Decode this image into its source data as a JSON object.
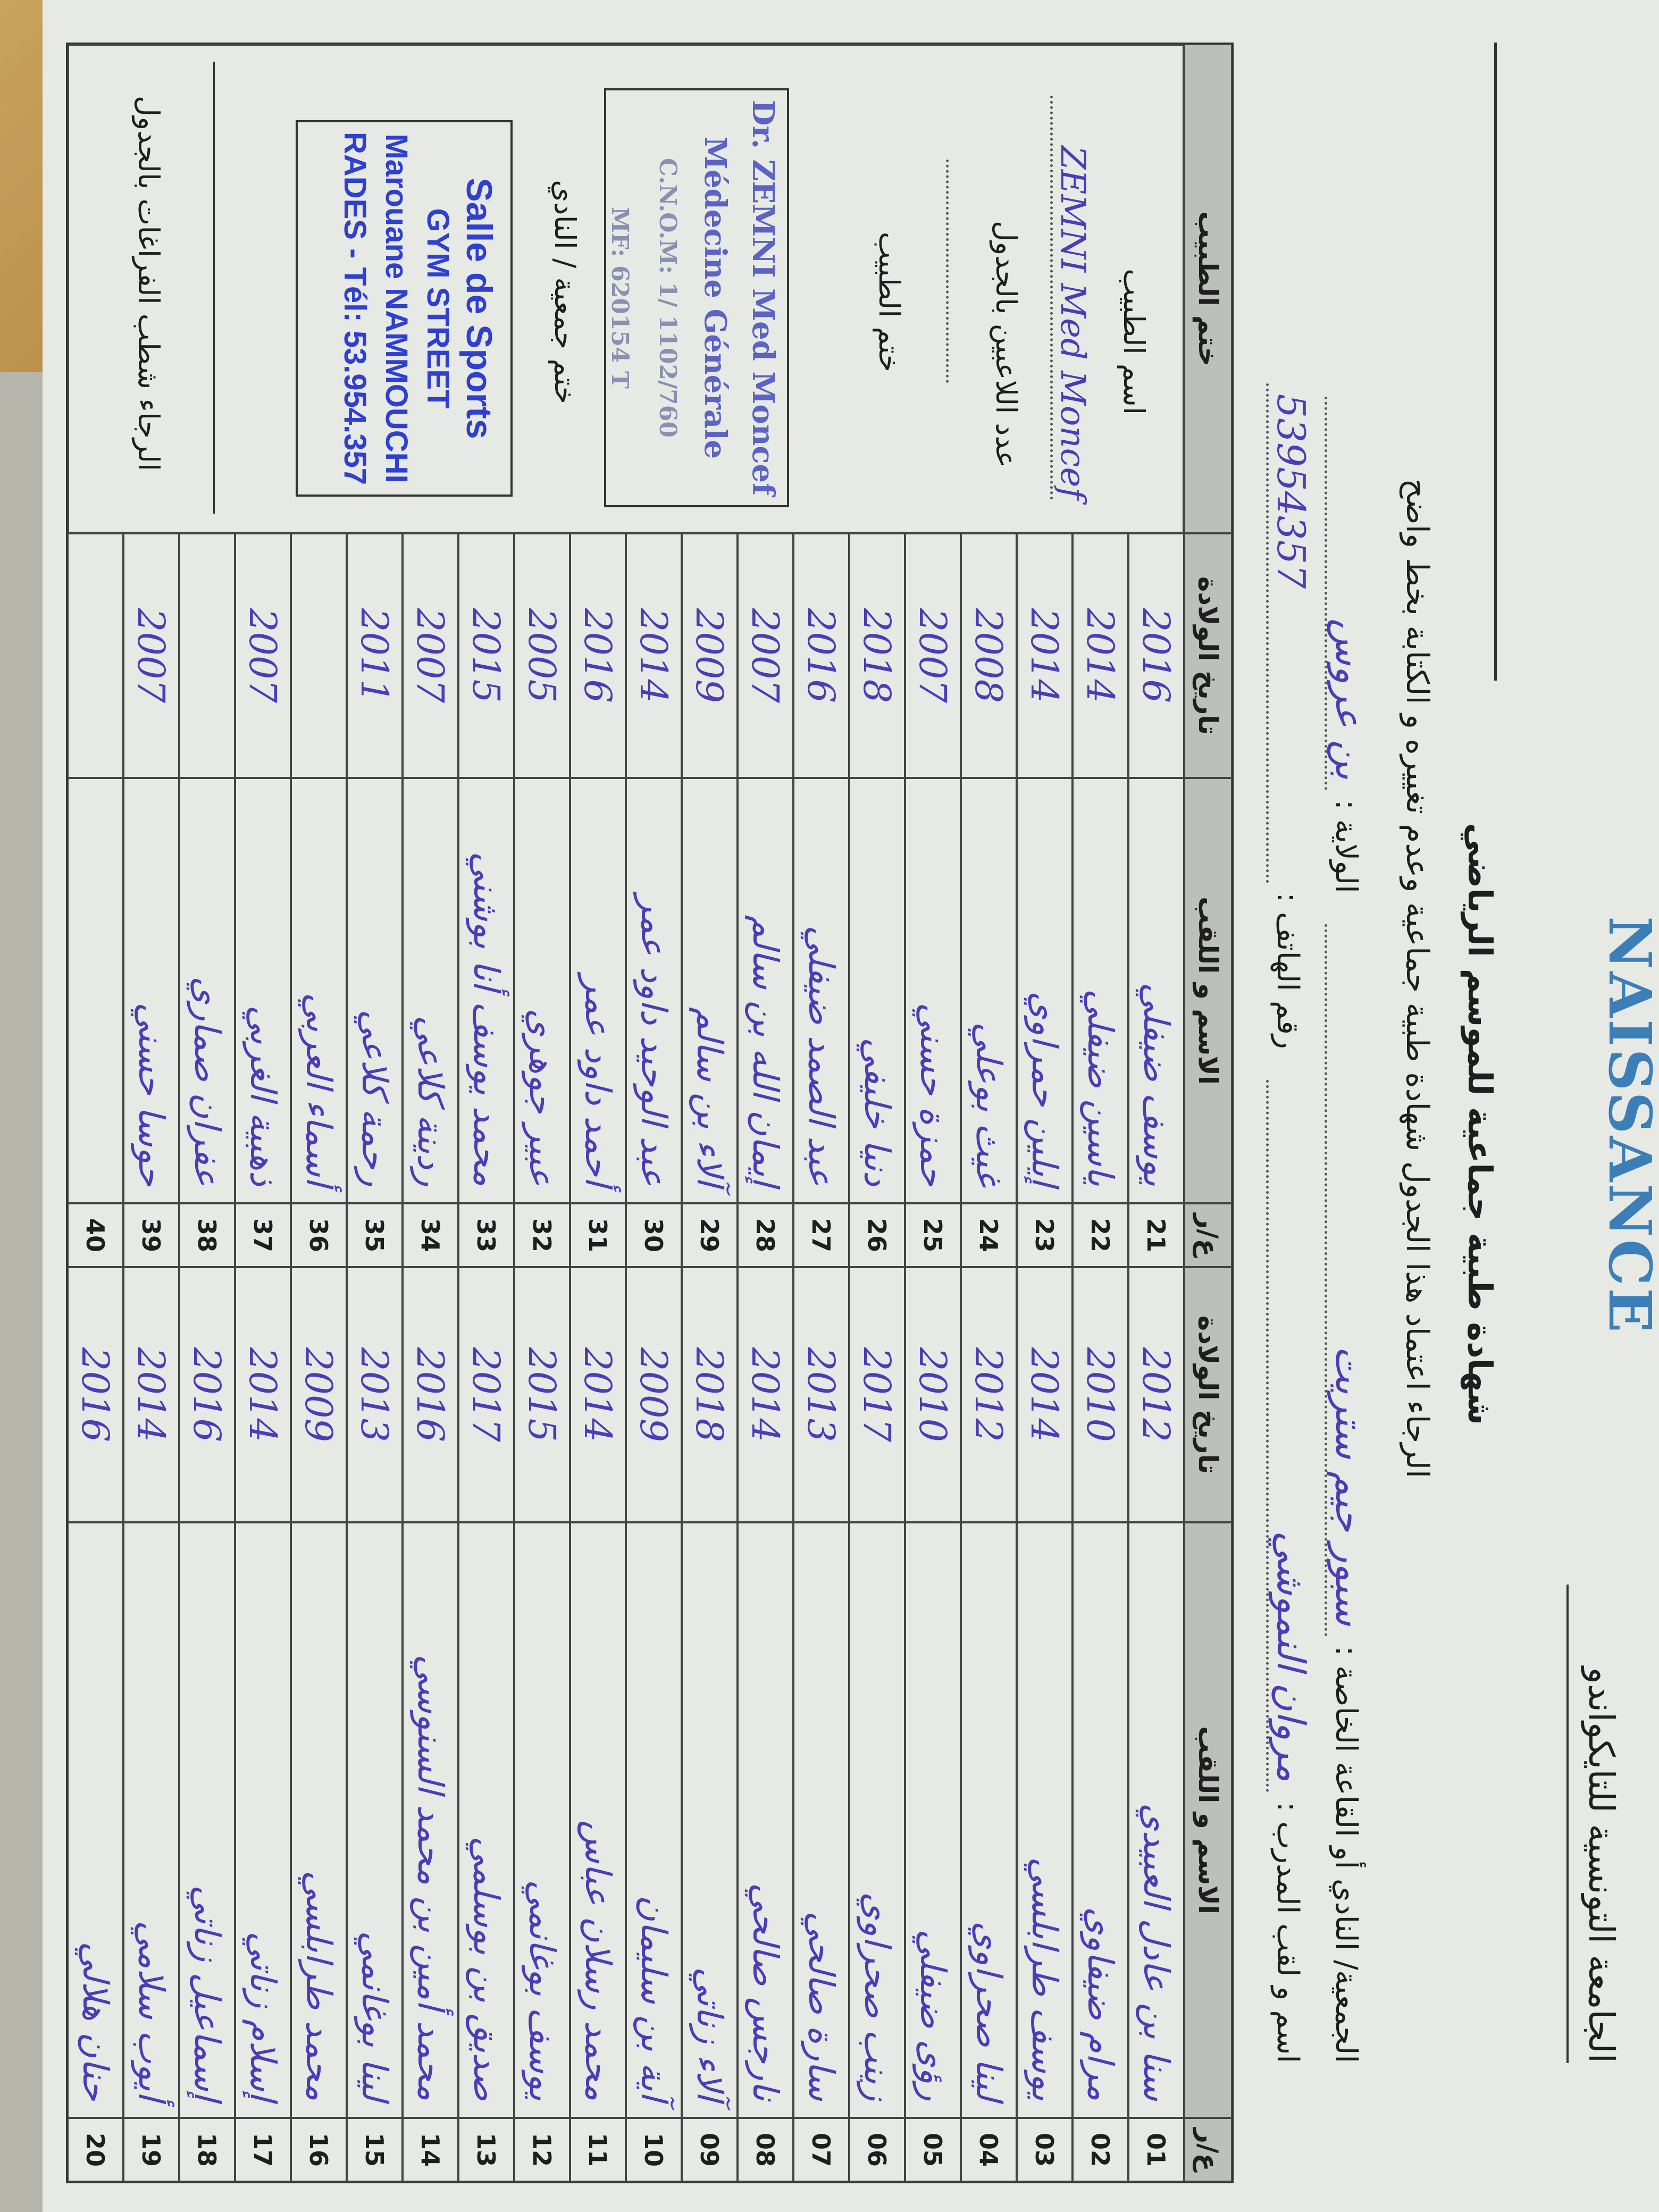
{
  "header": {
    "federation": "الجامعة التونسية للتايكواندو",
    "logo_text": "NAISSANCE",
    "title": "شهادة طبية جماعية للموسم الرياضي",
    "instruction": "الرجاء اعتماد هذا الجدول شهادة طبية جماعية وعدم تغييره و الكتابة بخط واضح",
    "club_label": "الجمعية/ النادي أو القاعة الخاصة :",
    "club_value": "سبور جيم ستريت",
    "wilaya_label": "الولاية :",
    "wilaya_value": "بن عروس",
    "coach_label": "اسم و لقب المدرب :",
    "coach_value": "مروان النموشي",
    "phone_label": "رقم الهاتف :",
    "phone_value": "53954357"
  },
  "table": {
    "headers": {
      "num": "ع/ر",
      "name": "الاسم و اللقب",
      "dob": "تاريخ الولادة"
    },
    "rows_right": [
      {
        "num": "01",
        "name": "سنا بن عادل العبيدي",
        "dob": "2012"
      },
      {
        "num": "02",
        "name": "مرام ضيفاوي",
        "dob": "2010"
      },
      {
        "num": "03",
        "name": "يوسف طرابلسي",
        "dob": "2014"
      },
      {
        "num": "04",
        "name": "لينا صحراوي",
        "dob": "2012"
      },
      {
        "num": "05",
        "name": "رؤى ضيفلي",
        "dob": "2010"
      },
      {
        "num": "06",
        "name": "زينب صحراوي",
        "dob": "2017"
      },
      {
        "num": "07",
        "name": "سارة صالحي",
        "dob": "2013"
      },
      {
        "num": "08",
        "name": "نارجس صالحي",
        "dob": "2014"
      },
      {
        "num": "09",
        "name": "آلاء زناتي",
        "dob": "2018"
      },
      {
        "num": "10",
        "name": "آية بن سليمان",
        "dob": "2009"
      },
      {
        "num": "11",
        "name": "محمد رسلان عباس",
        "dob": "2014"
      },
      {
        "num": "12",
        "name": "يوسف بوغانمي",
        "dob": "2015"
      },
      {
        "num": "13",
        "name": "صديق بن بوسلمي",
        "dob": "2017"
      },
      {
        "num": "14",
        "name": "محمد أمين بن محمد السنوسي",
        "dob": "2016"
      },
      {
        "num": "15",
        "name": "لينا بوغانمي",
        "dob": "2013"
      },
      {
        "num": "16",
        "name": "محمد طرابلسي",
        "dob": "2009"
      },
      {
        "num": "17",
        "name": "إسلام زناتي",
        "dob": "2014"
      },
      {
        "num": "18",
        "name": "إسماعيل زناتي",
        "dob": "2016"
      },
      {
        "num": "19",
        "name": "أيوب سلامي",
        "dob": "2014"
      },
      {
        "num": "20",
        "name": "حنان هلالي",
        "dob": "2016"
      }
    ],
    "rows_left": [
      {
        "num": "21",
        "name": "يوسف ضيفلي",
        "dob": "2016"
      },
      {
        "num": "22",
        "name": "ياسين ضيفلي",
        "dob": "2014"
      },
      {
        "num": "23",
        "name": "إيلين حمراوي",
        "dob": "2014"
      },
      {
        "num": "24",
        "name": "غيث بوعلي",
        "dob": "2008"
      },
      {
        "num": "25",
        "name": "حمزة حسني",
        "dob": "2007"
      },
      {
        "num": "26",
        "name": "دنيا خليفي",
        "dob": "2018"
      },
      {
        "num": "27",
        "name": "عبد الصمد ضيفلي",
        "dob": "2016"
      },
      {
        "num": "28",
        "name": "إيمان الله بن سالم",
        "dob": "2007"
      },
      {
        "num": "29",
        "name": "آلاء بن سالم",
        "dob": "2009"
      },
      {
        "num": "30",
        "name": "عبد الوحيد داود عمر",
        "dob": "2014"
      },
      {
        "num": "31",
        "name": "أحمد داود عمر",
        "dob": "2016"
      },
      {
        "num": "32",
        "name": "عبير جوهري",
        "dob": "2005"
      },
      {
        "num": "33",
        "name": "محمد يوسف أنا بوشني",
        "dob": "2015"
      },
      {
        "num": "34",
        "name": "ردينة كلاعي",
        "dob": "2007"
      },
      {
        "num": "35",
        "name": "رحمة كلاعي",
        "dob": "2011"
      },
      {
        "num": "36",
        "name": "أسماء العربي",
        "dob": ""
      },
      {
        "num": "37",
        "name": "ذهبية الغربي",
        "dob": "2007"
      },
      {
        "num": "38",
        "name": "عفران صماري",
        "dob": ""
      },
      {
        "num": "39",
        "name": "حوسا حسني",
        "dob": "2007"
      },
      {
        "num": "40",
        "name": "",
        "dob": ""
      }
    ]
  },
  "side": {
    "header": "ختم الطبيب",
    "doctor_name_label": "اسم الطبيب",
    "doctor_name_value": "ZEMNI Med Moncef",
    "player_count_label": "عدد اللاعبين بالجدول",
    "doctor_stamp_label": "ختم الطبيب",
    "doctor_stamp": [
      "Dr. ZEMNI Med Moncef",
      "Médecine Générale",
      "C.N.O.M: 1/ 1102/760",
      "MF: 620154 T"
    ],
    "club_stamp_label": "ختم جمعية / النادي",
    "club_stamp": [
      "Salle de Sports",
      "GYM STREET",
      "Marouane NAMMOUCHI",
      "RADES - Tél: 53.954.357"
    ],
    "footer_note": "الرجاء شطب الفراغات بالجدول"
  },
  "colors": {
    "handwriting": "#4a3db5",
    "stamp_blue": "#2f3fd0",
    "header_gray": "#bdbfbc",
    "logo_blue": "#3c7fb8"
  }
}
